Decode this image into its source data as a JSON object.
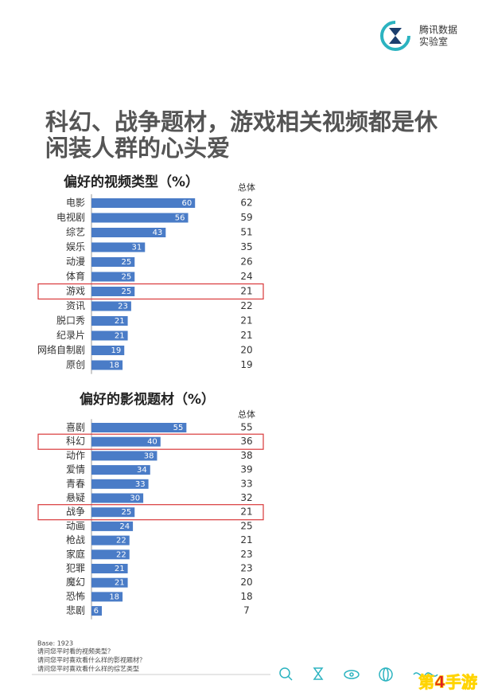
{
  "header": {
    "logo_lines": [
      "腾讯数据",
      "实验室"
    ]
  },
  "title_lines": [
    "科幻、战争题材，游戏相关视频都是休",
    "闲装人群的心头爱"
  ],
  "chart_data": [
    {
      "type": "bar",
      "orientation": "horizontal",
      "title": "偏好的视频类型（%）",
      "color": "#4a7cc7",
      "categories": [
        "电影",
        "电视剧",
        "综艺",
        "娱乐",
        "动漫",
        "体育",
        "游戏",
        "资讯",
        "脱口秀",
        "纪录片",
        "网络自制剧",
        "原创"
      ],
      "values": [
        60,
        56,
        43,
        31,
        25,
        25,
        25,
        23,
        21,
        21,
        19,
        18
      ],
      "column_header": "总体",
      "totals": [
        62,
        59,
        51,
        35,
        26,
        24,
        21,
        22,
        21,
        21,
        20,
        19
      ],
      "highlight": [
        6
      ],
      "highlight_color": "#d9383a"
    },
    {
      "type": "bar",
      "orientation": "horizontal",
      "title": "偏好的影视题材（%）",
      "color": "#4a7cc7",
      "categories": [
        "喜剧",
        "科幻",
        "动作",
        "爱情",
        "青春",
        "悬疑",
        "战争",
        "动画",
        "枪战",
        "家庭",
        "犯罪",
        "魔幻",
        "恐怖",
        "悲剧"
      ],
      "values": [
        55,
        40,
        38,
        34,
        33,
        30,
        25,
        24,
        22,
        22,
        21,
        21,
        18,
        6
      ],
      "column_header": "总体",
      "totals": [
        55,
        36,
        38,
        39,
        33,
        32,
        21,
        25,
        21,
        23,
        23,
        20,
        18,
        7
      ],
      "highlight": [
        1,
        6
      ],
      "highlight_color": "#d9383a"
    }
  ],
  "footnotes": [
    "Base: 1923",
    "请问您平时看的视频类型？",
    "请问您平时喜欢看什么样的影视题材？",
    "请问您平时喜欢看什么样的综艺类型"
  ],
  "watermark": "第4手游"
}
